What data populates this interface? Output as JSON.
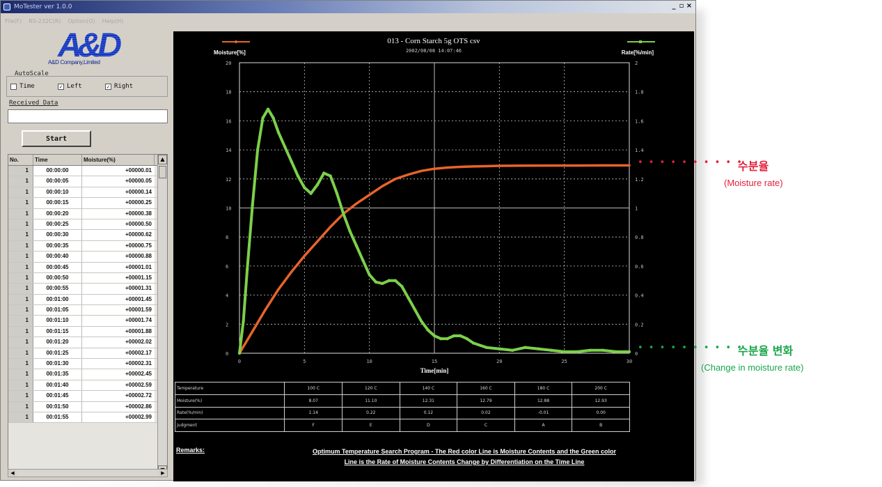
{
  "window": {
    "title": "MoTester ver 1.0.0",
    "minimize": "_",
    "maximize": "▫",
    "close": "×"
  },
  "menu": [
    "File(F)",
    "RS-232C(R)",
    "Option(O)",
    "Help(H)"
  ],
  "logo": {
    "mark": "A&D",
    "company": "A&D Company,Limited"
  },
  "autoscale": {
    "label": "AutoScale",
    "time_label": "Time",
    "time_checked": false,
    "left_label": "Left",
    "left_checked": true,
    "right_label": "Right",
    "right_checked": true
  },
  "received": {
    "label": "Received Data",
    "value": ""
  },
  "start_label": "Start",
  "grid": {
    "headers": [
      "No.",
      "Time",
      "Moisture(%)"
    ],
    "rows": [
      [
        "1",
        "00:00:00",
        "+00000.01"
      ],
      [
        "1",
        "00:00:05",
        "+00000.05"
      ],
      [
        "1",
        "00:00:10",
        "+00000.14"
      ],
      [
        "1",
        "00:00:15",
        "+00000.25"
      ],
      [
        "1",
        "00:00:20",
        "+00000.38"
      ],
      [
        "1",
        "00:00:25",
        "+00000.50"
      ],
      [
        "1",
        "00:00:30",
        "+00000.62"
      ],
      [
        "1",
        "00:00:35",
        "+00000.75"
      ],
      [
        "1",
        "00:00:40",
        "+00000.88"
      ],
      [
        "1",
        "00:00:45",
        "+00001.01"
      ],
      [
        "1",
        "00:00:50",
        "+00001.15"
      ],
      [
        "1",
        "00:00:55",
        "+00001.31"
      ],
      [
        "1",
        "00:01:00",
        "+00001.45"
      ],
      [
        "1",
        "00:01:05",
        "+00001.59"
      ],
      [
        "1",
        "00:01:10",
        "+00001.74"
      ],
      [
        "1",
        "00:01:15",
        "+00001.88"
      ],
      [
        "1",
        "00:01:20",
        "+00002.02"
      ],
      [
        "1",
        "00:01:25",
        "+00002.17"
      ],
      [
        "1",
        "00:01:30",
        "+00002.31"
      ],
      [
        "1",
        "00:01:35",
        "+00002.45"
      ],
      [
        "1",
        "00:01:40",
        "+00002.59"
      ],
      [
        "1",
        "00:01:45",
        "+00002.72"
      ],
      [
        "1",
        "00:01:50",
        "+00002.86"
      ],
      [
        "1",
        "00:01:55",
        "+00002.99"
      ]
    ]
  },
  "chart": {
    "title": "013 - Corn Starch 5g OTS csv",
    "date": "2002/08/08 14:07:46"
  },
  "chart_data": {
    "type": "line",
    "xlabel": "Time[min]",
    "ylabel": "Moisture[%]",
    "y2label": "Rate[%/min]",
    "xlim": [
      0,
      30
    ],
    "ylim": [
      0,
      20
    ],
    "y2lim": [
      0,
      2
    ],
    "xticks": [
      "0",
      "5",
      "10",
      "15",
      "20",
      "25",
      "30"
    ],
    "yticks": [
      "0",
      "2",
      "4",
      "6",
      "8",
      "10",
      "12",
      "14",
      "16",
      "18",
      "20"
    ],
    "y2ticks": [
      "0",
      "0.2",
      "0.4",
      "0.6",
      "0.8",
      "1",
      "1.2",
      "1.4",
      "1.6",
      "1.8",
      "2"
    ],
    "grid": true,
    "series": [
      {
        "name": "Moisture[%]",
        "axis": "left",
        "color": "#e8642a",
        "x": [
          0,
          1,
          2,
          3,
          4,
          5,
          6,
          7,
          8,
          9,
          10,
          11,
          12,
          13,
          14,
          15,
          16,
          17,
          18,
          19,
          20,
          22,
          24,
          26,
          28,
          30
        ],
        "values": [
          0,
          1.5,
          3.0,
          4.4,
          5.6,
          6.7,
          7.7,
          8.7,
          9.6,
          10.3,
          10.9,
          11.5,
          12.0,
          12.3,
          12.55,
          12.7,
          12.78,
          12.83,
          12.86,
          12.88,
          12.9,
          12.91,
          12.92,
          12.92,
          12.93,
          12.93
        ]
      },
      {
        "name": "Rate[%/min]",
        "axis": "right",
        "color": "#7cd04a",
        "x": [
          0,
          0.3,
          0.6,
          1.0,
          1.4,
          1.8,
          2.2,
          2.6,
          3.0,
          3.5,
          4.0,
          4.5,
          5.0,
          5.5,
          6.0,
          6.5,
          7.0,
          7.5,
          8.0,
          8.5,
          9.0,
          9.5,
          10.0,
          10.5,
          11.0,
          11.5,
          12.0,
          12.5,
          13.0,
          13.5,
          14.0,
          14.5,
          15.0,
          15.5,
          16.0,
          16.5,
          17.0,
          17.5,
          18.0,
          19.0,
          20.0,
          21.0,
          22.0,
          23.0,
          24.0,
          25.0,
          26.0,
          27.0,
          28.0,
          29.0,
          30.0
        ],
        "values": [
          0,
          0.22,
          0.58,
          1.02,
          1.4,
          1.62,
          1.68,
          1.62,
          1.52,
          1.42,
          1.32,
          1.22,
          1.14,
          1.1,
          1.16,
          1.24,
          1.22,
          1.1,
          0.96,
          0.84,
          0.74,
          0.64,
          0.54,
          0.49,
          0.48,
          0.5,
          0.5,
          0.46,
          0.38,
          0.3,
          0.22,
          0.16,
          0.12,
          0.1,
          0.1,
          0.12,
          0.12,
          0.1,
          0.07,
          0.04,
          0.03,
          0.02,
          0.04,
          0.03,
          0.02,
          0.01,
          0.01,
          0.02,
          0.02,
          0.01,
          0.01
        ]
      }
    ]
  },
  "results": {
    "rows": [
      [
        "Temperature",
        "100 C",
        "120 C",
        "140 C",
        "160 C",
        "180 C",
        "200 C"
      ],
      [
        "Moisture(%)",
        "8.07",
        "11.10",
        "12.31",
        "12.79",
        "12.88",
        "12.93"
      ],
      [
        "Rate(%/min)",
        "1.14",
        "0.22",
        "0.12",
        "0.02",
        "-0.01",
        "0.00"
      ],
      [
        "Judgment",
        "F",
        "E",
        "D",
        "C",
        "A",
        "B"
      ]
    ]
  },
  "remarks": {
    "label": "Remarks:",
    "line1": "Optimum Temperature Search Program - The Red color Line is Moisture Contents and the Green color",
    "line2": "Line is the Rate of Moisture Contents Change by Differentiation on the Time Line"
  },
  "annotations": {
    "moisture_ko": "수분율",
    "moisture_en": "(Moisture rate)",
    "moisture_color": "#e3203b",
    "rate_ko": "수분율 변화",
    "rate_en": "(Change in moisture rate)",
    "rate_color": "#1aa64a",
    "dots": "• • • • • • • • • •"
  }
}
